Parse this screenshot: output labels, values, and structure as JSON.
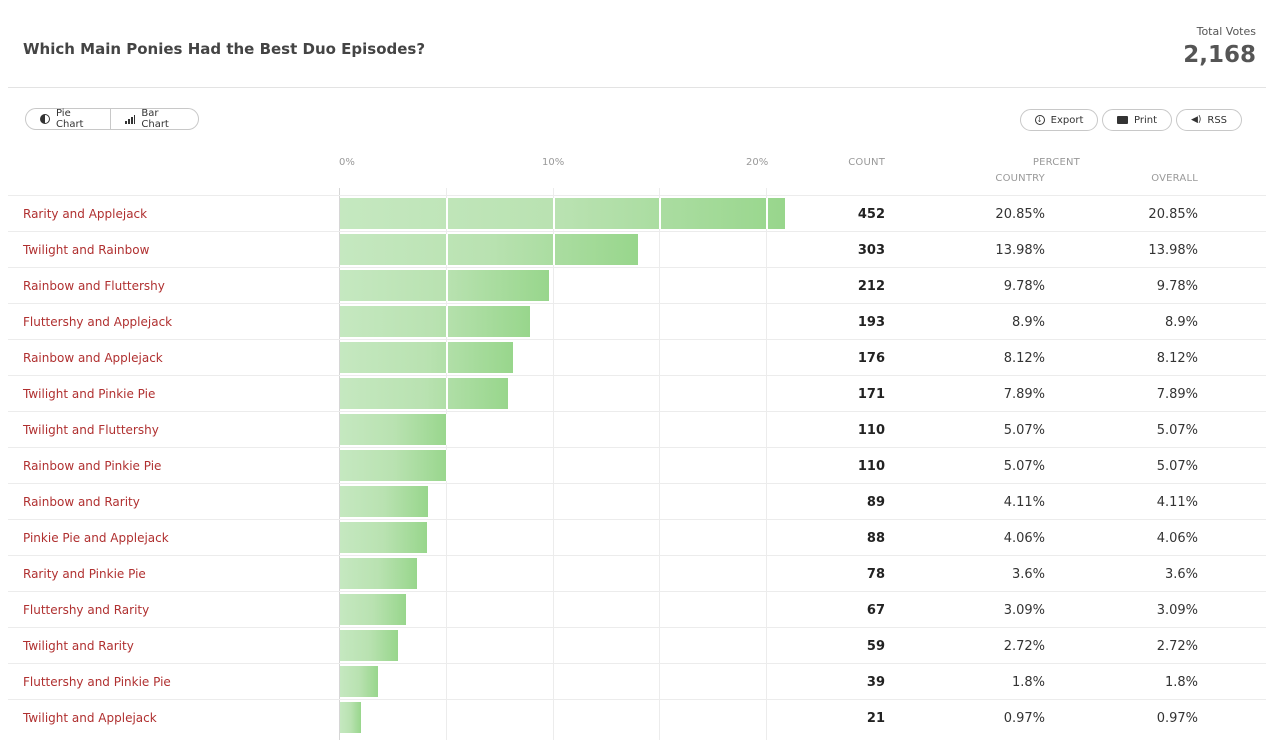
{
  "header": {
    "title": "Which Main Ponies Had the Best Duo Episodes?",
    "total_label": "Total Votes",
    "total_value": "2,168"
  },
  "toolbar": {
    "pie_label": "Pie Chart",
    "bar_label": "Bar Chart",
    "export_label": "Export",
    "print_label": "Print",
    "rss_label": "RSS"
  },
  "columns": {
    "count": "COUNT",
    "percent": "PERCENT",
    "country": "COUNTRY",
    "overall": "OVERALL"
  },
  "chart_data": {
    "type": "bar",
    "orientation": "horizontal",
    "title": "Which Main Ponies Had the Best Duo Episodes?",
    "xlabel": "",
    "ylabel": "",
    "xlim": [
      0,
      20
    ],
    "x_ticks": [
      "0%",
      "10%",
      "20%"
    ],
    "categories": [
      "Rarity and Applejack",
      "Twilight and Rainbow",
      "Rainbow and Fluttershy",
      "Fluttershy and Applejack",
      "Rainbow and Applejack",
      "Twilight and Pinkie Pie",
      "Twilight and Fluttershy",
      "Rainbow and Pinkie Pie",
      "Rainbow and Rarity",
      "Pinkie Pie and Applejack",
      "Rarity and Pinkie Pie",
      "Fluttershy and Rarity",
      "Twilight and Rarity",
      "Fluttershy and Pinkie Pie",
      "Twilight and Applejack"
    ],
    "values": [
      20.85,
      13.98,
      9.78,
      8.9,
      8.12,
      7.89,
      5.07,
      5.07,
      4.11,
      4.06,
      3.6,
      3.09,
      2.72,
      1.8,
      0.97
    ],
    "rows": [
      {
        "label": "Rarity and Applejack",
        "count": "452",
        "country": "20.85%",
        "overall": "20.85%"
      },
      {
        "label": "Twilight and Rainbow",
        "count": "303",
        "country": "13.98%",
        "overall": "13.98%"
      },
      {
        "label": "Rainbow and Fluttershy",
        "count": "212",
        "country": "9.78%",
        "overall": "9.78%"
      },
      {
        "label": "Fluttershy and Applejack",
        "count": "193",
        "country": "8.9%",
        "overall": "8.9%"
      },
      {
        "label": "Rainbow and Applejack",
        "count": "176",
        "country": "8.12%",
        "overall": "8.12%"
      },
      {
        "label": "Twilight and Pinkie Pie",
        "count": "171",
        "country": "7.89%",
        "overall": "7.89%"
      },
      {
        "label": "Twilight and Fluttershy",
        "count": "110",
        "country": "5.07%",
        "overall": "5.07%"
      },
      {
        "label": "Rainbow and Pinkie Pie",
        "count": "110",
        "country": "5.07%",
        "overall": "5.07%"
      },
      {
        "label": "Rainbow and Rarity",
        "count": "89",
        "country": "4.11%",
        "overall": "4.11%"
      },
      {
        "label": "Pinkie Pie and Applejack",
        "count": "88",
        "country": "4.06%",
        "overall": "4.06%"
      },
      {
        "label": "Rarity and Pinkie Pie",
        "count": "78",
        "country": "3.6%",
        "overall": "3.6%"
      },
      {
        "label": "Fluttershy and Rarity",
        "count": "67",
        "country": "3.09%",
        "overall": "3.09%"
      },
      {
        "label": "Twilight and Rarity",
        "count": "59",
        "country": "2.72%",
        "overall": "2.72%"
      },
      {
        "label": "Fluttershy and Pinkie Pie",
        "count": "39",
        "country": "1.8%",
        "overall": "1.8%"
      },
      {
        "label": "Twilight and Applejack",
        "count": "21",
        "country": "0.97%",
        "overall": "0.97%"
      }
    ]
  },
  "colors": {
    "bar_light": "#c5e8c0",
    "bar_dark": "#98d68c",
    "label_red": "#b03030"
  }
}
